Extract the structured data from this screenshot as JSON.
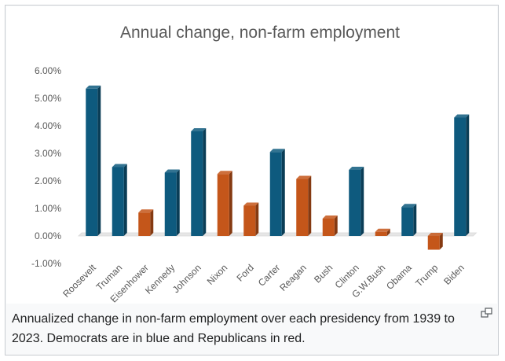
{
  "chart_data": {
    "type": "bar",
    "title": "Annual change, non-farm employment",
    "xlabel": "",
    "ylabel": "",
    "ylim": [
      -1.0,
      6.0
    ],
    "yticks": [
      "-1.00%",
      "0.00%",
      "1.00%",
      "2.00%",
      "3.00%",
      "4.00%",
      "5.00%",
      "6.00%"
    ],
    "grid": false,
    "legend": "none",
    "categories": [
      "Roosevelt",
      "Truman",
      "Eisenhower",
      "Kennedy",
      "Johnson",
      "Nixon",
      "Ford",
      "Carter",
      "Reagan",
      "Bush",
      "Clinton",
      "G.W.Bush",
      "Obama",
      "Trump",
      "Biden"
    ],
    "values": [
      5.35,
      2.5,
      0.85,
      2.3,
      3.8,
      2.25,
      1.1,
      3.05,
      2.07,
      0.63,
      2.4,
      0.15,
      1.05,
      -0.5,
      4.3
    ],
    "parties": [
      "D",
      "D",
      "R",
      "D",
      "D",
      "R",
      "R",
      "D",
      "R",
      "R",
      "D",
      "R",
      "D",
      "R",
      "D"
    ],
    "colors": {
      "D": "#0e5a7e",
      "R": "#c4561a"
    }
  },
  "caption": "Annualized change in non-farm employment over each presidency from 1939 to 2023. Democrats are in blue and Republicans in red.",
  "icons": {
    "enlarge": "enlarge-icon"
  }
}
